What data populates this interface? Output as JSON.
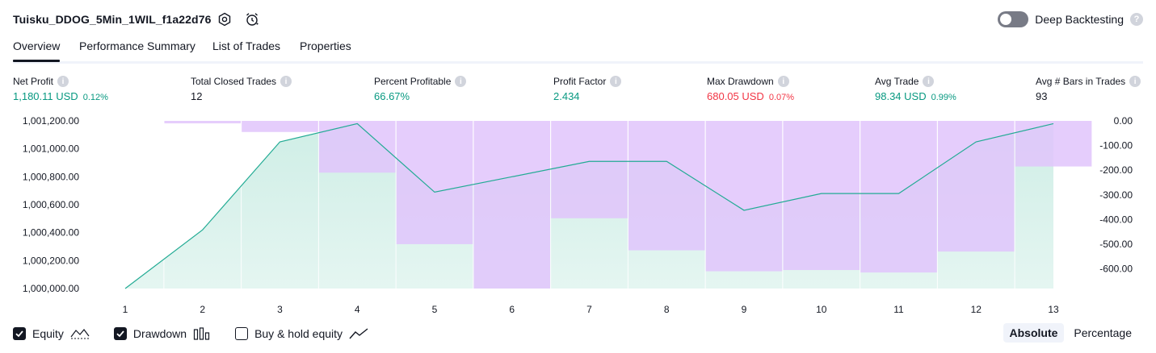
{
  "header": {
    "strategy_name": "Tuisku_DDOG_5Min_1WIL_f1a22d76",
    "settings_icon": "settings-icon",
    "alert_icon": "alarm-clock-icon",
    "deep_backtesting_label": "Deep Backtesting",
    "deep_backtesting_enabled": false,
    "help_icon_text": "?"
  },
  "tabs": [
    {
      "label": "Overview",
      "active": true
    },
    {
      "label": "Performance Summary",
      "active": false
    },
    {
      "label": "List of Trades",
      "active": false
    },
    {
      "label": "Properties",
      "active": false
    }
  ],
  "metrics": [
    {
      "label": "Net Profit",
      "value": "1,180.11 USD",
      "pct": "0.12%",
      "color": "#089981"
    },
    {
      "label": "Total Closed Trades",
      "value": "12",
      "pct": "",
      "color": "#131722"
    },
    {
      "label": "Percent Profitable",
      "value": "66.67%",
      "pct": "",
      "color": "#089981"
    },
    {
      "label": "Profit Factor",
      "value": "2.434",
      "pct": "",
      "color": "#089981"
    },
    {
      "label": "Max Drawdown",
      "value": "680.05 USD",
      "pct": "0.07%",
      "color": "#f23645"
    },
    {
      "label": "Avg Trade",
      "value": "98.34 USD",
      "pct": "0.99%",
      "color": "#089981"
    },
    {
      "label": "Avg # Bars in Trades",
      "value": "93",
      "pct": "",
      "color": "#131722"
    }
  ],
  "chart_data": {
    "type": "line",
    "x": [
      1,
      2,
      3,
      4,
      5,
      6,
      7,
      8,
      9,
      10,
      11,
      12,
      13
    ],
    "series": [
      {
        "name": "Equity",
        "type": "area",
        "axis": "left",
        "values": [
          1000000,
          1000420,
          1001050,
          1001180,
          1000690,
          1000800,
          1000910,
          1000910,
          1000560,
          1000680,
          1000680,
          1001050,
          1001180
        ]
      },
      {
        "name": "Drawdown",
        "type": "bar",
        "axis": "right",
        "values": [
          0,
          -10,
          -45,
          -210,
          -500,
          -680,
          -395,
          -525,
          -610,
          -605,
          -615,
          -530,
          -185
        ]
      }
    ],
    "left_axis": {
      "ticks": [
        "1,001,200.00",
        "1,001,000.00",
        "1,000,800.00",
        "1,000,600.00",
        "1,000,400.00",
        "1,000,200.00",
        "1,000,000.00"
      ],
      "range": [
        1000000,
        1001200
      ]
    },
    "right_axis": {
      "ticks": [
        "0.00",
        "-100.00",
        "-200.00",
        "-300.00",
        "-400.00",
        "-500.00",
        "-600.00"
      ],
      "range": [
        -680,
        0
      ]
    },
    "x_ticks": [
      "1",
      "2",
      "3",
      "4",
      "5",
      "6",
      "7",
      "8",
      "9",
      "10",
      "11",
      "12",
      "13"
    ],
    "colors": {
      "equity_line": "#22ab94",
      "equity_fill": "#cfeee6",
      "drawdown_fill": "#e1c4fc",
      "grid": "#ffffff"
    }
  },
  "legend": [
    {
      "label": "Equity",
      "checked": true,
      "icon": "equity-line-icon"
    },
    {
      "label": "Drawdown",
      "checked": true,
      "icon": "drawdown-bars-icon"
    },
    {
      "label": "Buy & hold equity",
      "checked": false,
      "icon": "buy-hold-line-icon"
    }
  ],
  "view_mode": {
    "options": [
      "Absolute",
      "Percentage"
    ],
    "selected": "Absolute"
  }
}
